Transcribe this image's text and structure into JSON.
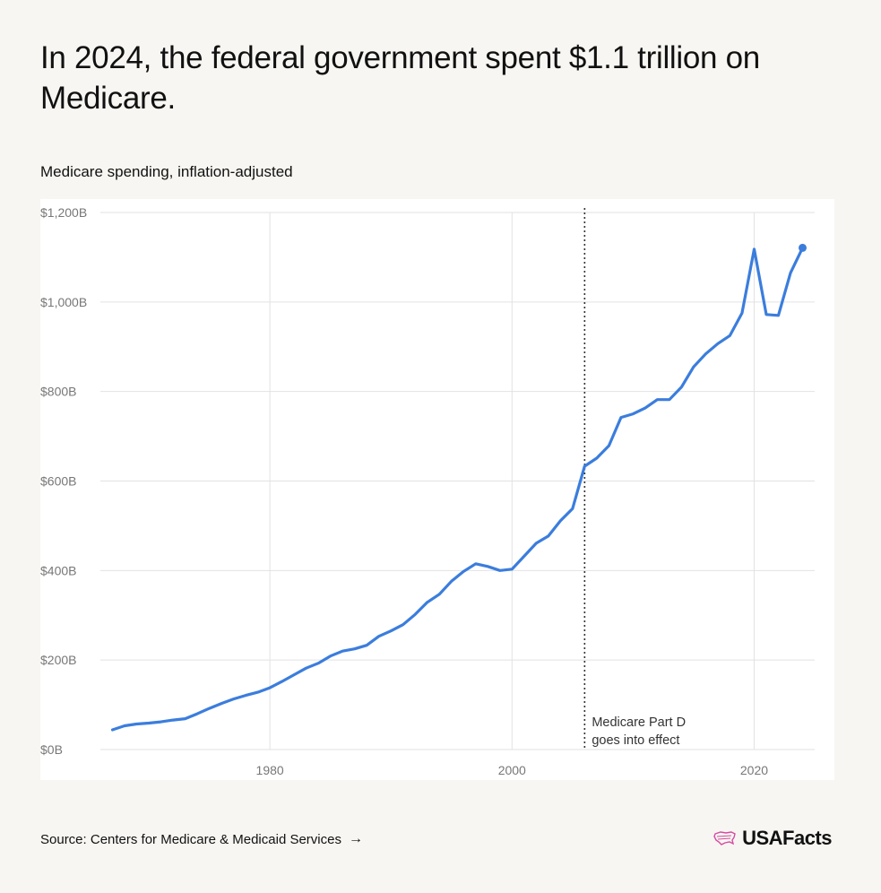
{
  "headline": "In 2024, the federal government spent $1.1 trillion on Medicare.",
  "subtitle": "Medicare spending, inflation-adjusted",
  "footer": {
    "source_label": "Source: Centers for Medicare & Medicaid Services",
    "arrow": "→",
    "brand": "USAFacts"
  },
  "colors": {
    "background": "#f7f6f2",
    "line": "#3b7ddd",
    "grid": "#e2e2e2",
    "brand_logo": "#d64aa0"
  },
  "icons": {
    "source_link": "arrow-right-icon",
    "brand": "usa-map-logo-icon"
  },
  "chart_data": {
    "type": "line",
    "title": "Medicare spending, inflation-adjusted",
    "xlabel": "",
    "ylabel": "",
    "xlim": [
      1966,
      2025
    ],
    "ylim": [
      0,
      1200
    ],
    "y_ticks": [
      0,
      200,
      400,
      600,
      800,
      1000,
      1200
    ],
    "y_tick_labels": [
      "$0B",
      "$200B",
      "$400B",
      "$600B",
      "$800B",
      "$1,000B",
      "$1,200B"
    ],
    "x_ticks": [
      1980,
      2000,
      2020
    ],
    "x_tick_labels": [
      "1980",
      "2000",
      "2020"
    ],
    "grid": true,
    "legend": "none",
    "series": [
      {
        "x": [
          1967,
          1968,
          1969,
          1970,
          1971,
          1972,
          1973,
          1974,
          1975,
          1976,
          1977,
          1978,
          1979,
          1980,
          1981,
          1982,
          1983,
          1984,
          1985,
          1986,
          1987,
          1988,
          1989,
          1990,
          1991,
          1992,
          1993,
          1994,
          1995,
          1996,
          1997,
          1998,
          1999,
          2000,
          2001,
          2002,
          2003,
          2004,
          2005,
          2006,
          2007,
          2008,
          2009,
          2010,
          2011,
          2012,
          2013,
          2014,
          2015,
          2016,
          2017,
          2018,
          2019,
          2020,
          2021,
          2022,
          2023,
          2024
        ],
        "values": [
          44,
          53,
          57,
          59,
          62,
          66,
          69,
          80,
          92,
          103,
          113,
          121,
          128,
          138,
          152,
          167,
          182,
          193,
          209,
          220,
          225,
          233,
          253,
          265,
          279,
          302,
          329,
          347,
          376,
          398,
          415,
          409,
          400,
          403,
          432,
          461,
          477,
          511,
          538,
          633,
          651,
          679,
          742,
          750,
          763,
          782,
          782,
          810,
          855,
          884,
          907,
          925,
          975,
          1118,
          972,
          970,
          1065,
          1121
        ]
      }
    ],
    "annotations": [
      {
        "x": 2006,
        "text_lines": [
          "Medicare Part D",
          "goes into effect"
        ]
      }
    ]
  }
}
